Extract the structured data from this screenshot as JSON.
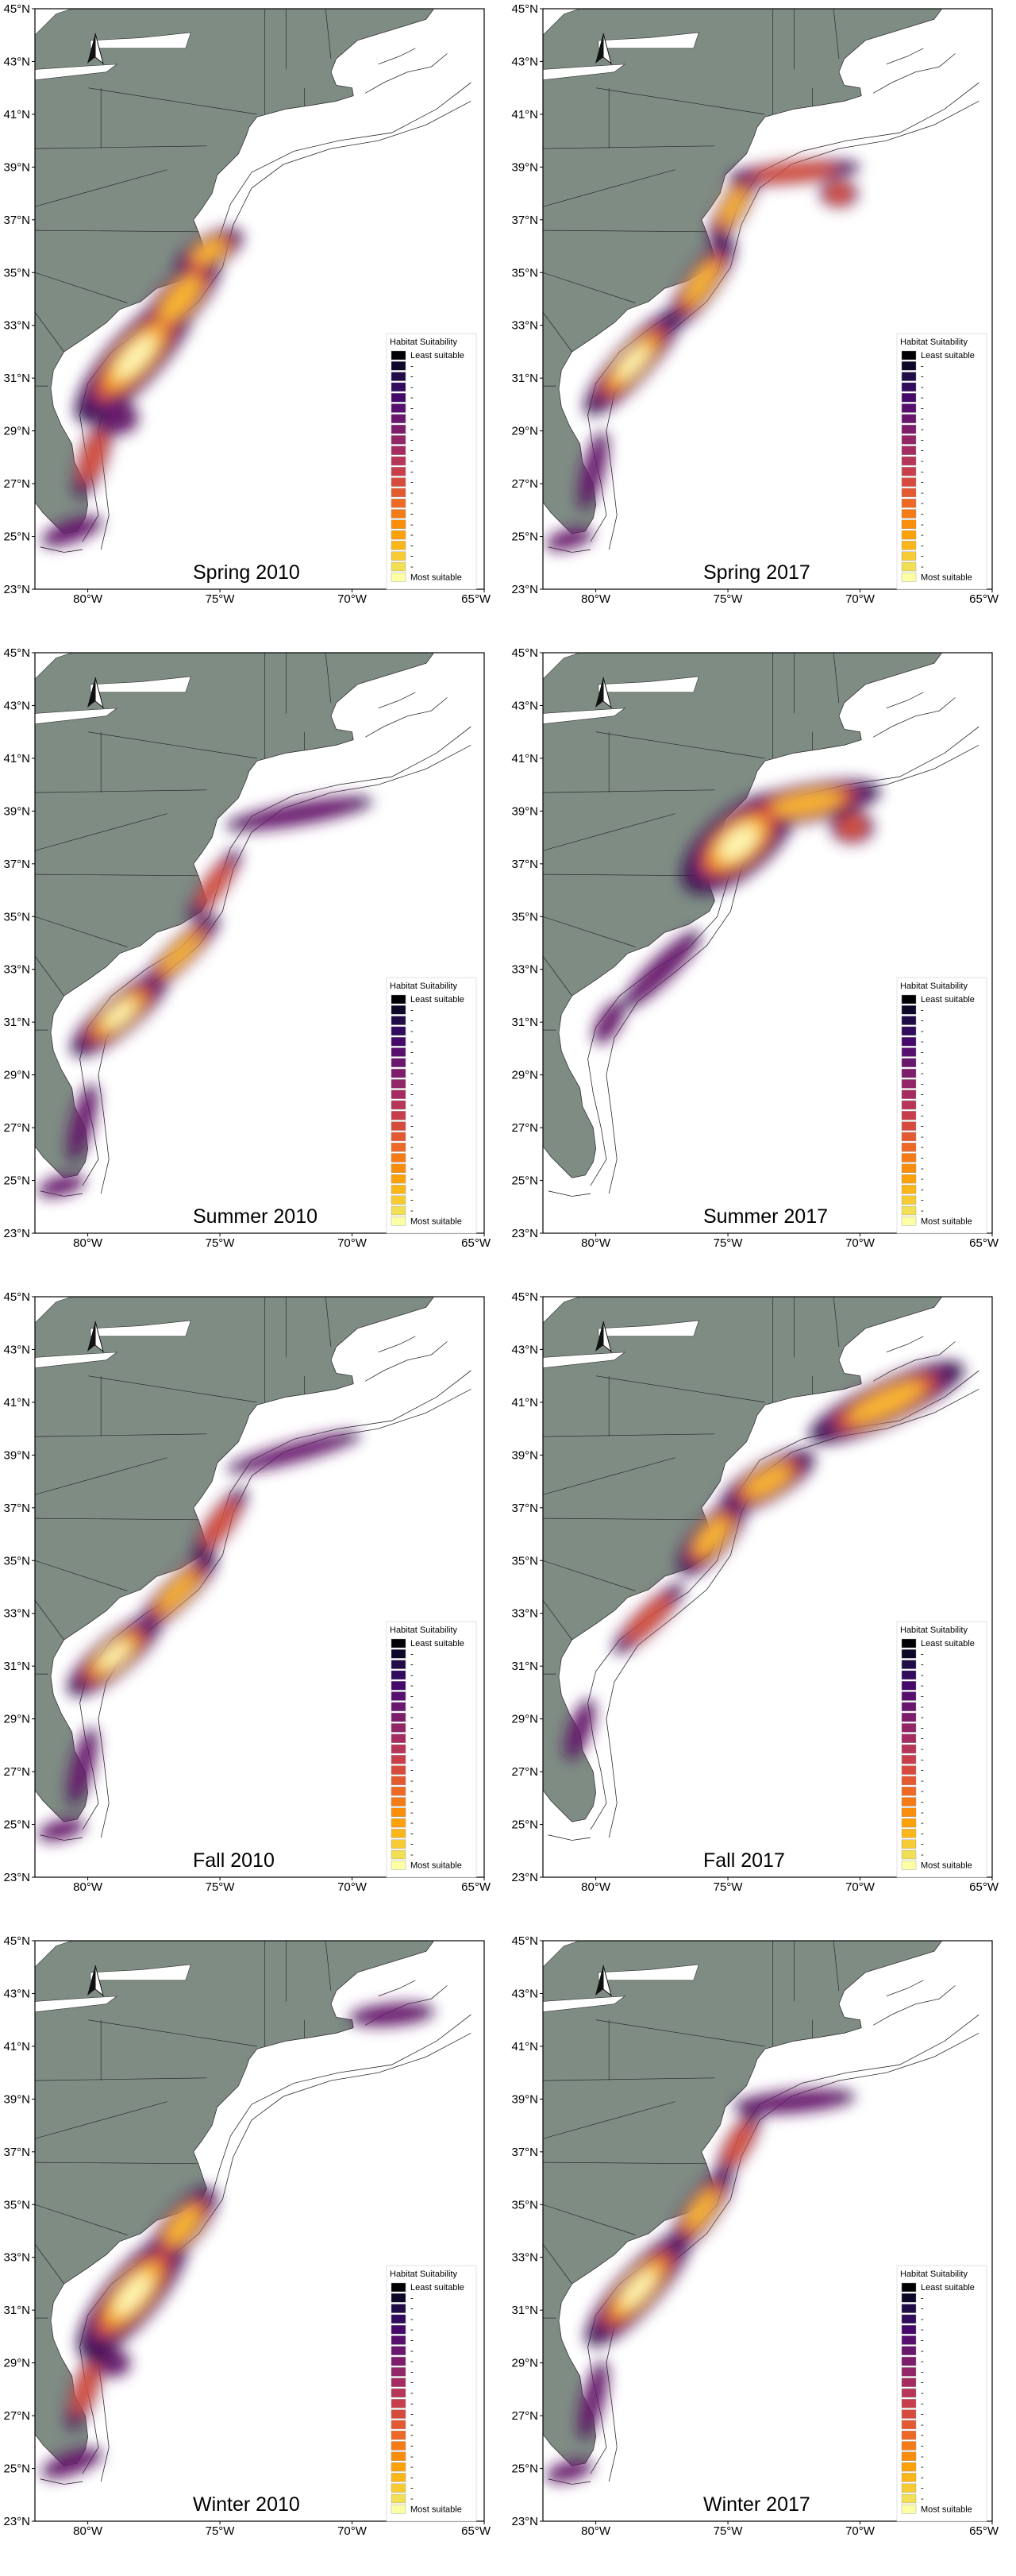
{
  "legend": {
    "title": "Habitat Suitability",
    "least": "Least suitable",
    "most": "Most suitable",
    "dash": "-",
    "swatches": [
      "#000004",
      "#0d0829",
      "#1f0c48",
      "#320a5e",
      "#450a69",
      "#57106e",
      "#6a176e",
      "#7d1d6c",
      "#932667",
      "#a52c60",
      "#b73557",
      "#c73e4c",
      "#d74b3f",
      "#e35932",
      "#ed6925",
      "#f57b17",
      "#fa8d0a",
      "#fca108",
      "#fbb61a",
      "#f6cb34",
      "#f1df55",
      "#fcffa4"
    ]
  },
  "axes": {
    "lat_labels": [
      "45°N",
      "43°N",
      "41°N",
      "39°N",
      "37°N",
      "35°N",
      "33°N",
      "31°N",
      "29°N",
      "27°N",
      "25°N",
      "23°N"
    ],
    "lon_labels": [
      "80°W",
      "75°W",
      "70°W",
      "65°W"
    ]
  },
  "panels": [
    {
      "caption": "Spring 2010",
      "id": "spring-2010"
    },
    {
      "caption": "Spring 2017",
      "id": "spring-2017"
    },
    {
      "caption": "Summer 2010",
      "id": "summer-2010"
    },
    {
      "caption": "Summer 2017",
      "id": "summer-2017"
    },
    {
      "caption": "Fall 2010",
      "id": "fall-2010"
    },
    {
      "caption": "Fall 2017",
      "id": "fall-2017"
    },
    {
      "caption": "Winter 2010",
      "id": "winter-2010"
    },
    {
      "caption": "Winter 2017",
      "id": "winter-2017"
    }
  ],
  "colors": {
    "land": "#7f8c84",
    "water": "#ffffff",
    "hot_core": "#fdf5b0",
    "hot_mid": "#f8b530",
    "hot_warm": "#d8523a",
    "hot_low": "#6b1a6e",
    "hot_edge": "#2a0b4a"
  }
}
